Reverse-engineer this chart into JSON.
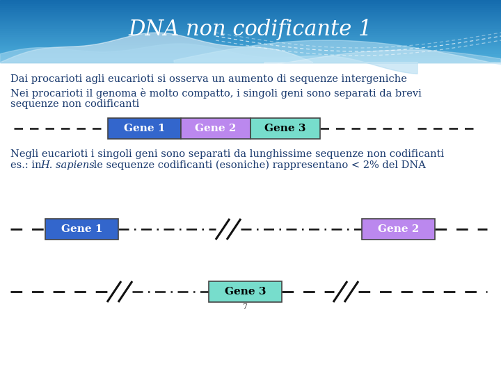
{
  "title": "DNA non codificante 1",
  "bg_color": "#ffffff",
  "title_color": "#ffffff",
  "title_fontsize": 22,
  "text_color": "#1a3a6e",
  "text_fontsize": 10.5,
  "line1": "Dai procarioti agli eucarioti si osserva un aumento di sequenze intergeniche",
  "line2a": "Nei procarioti il genoma è molto compatto, i singoli geni sono separati da brevi",
  "line2b": "sequenze non codificanti",
  "line3a": "Negli eucarioti i singoli geni sono separati da lunghissime sequenze non codificanti",
  "line3b_pre": "es.: in ",
  "line3b_italic": "H. sapiens",
  "line3b_post": " le sequenze codificanti (esoniche) rappresentano < 2% del DNA",
  "gene1_color": "#3366cc",
  "gene2_color": "#bb88ee",
  "gene3_color": "#77ddcc",
  "dash_color": "#111111",
  "page_num": "7"
}
